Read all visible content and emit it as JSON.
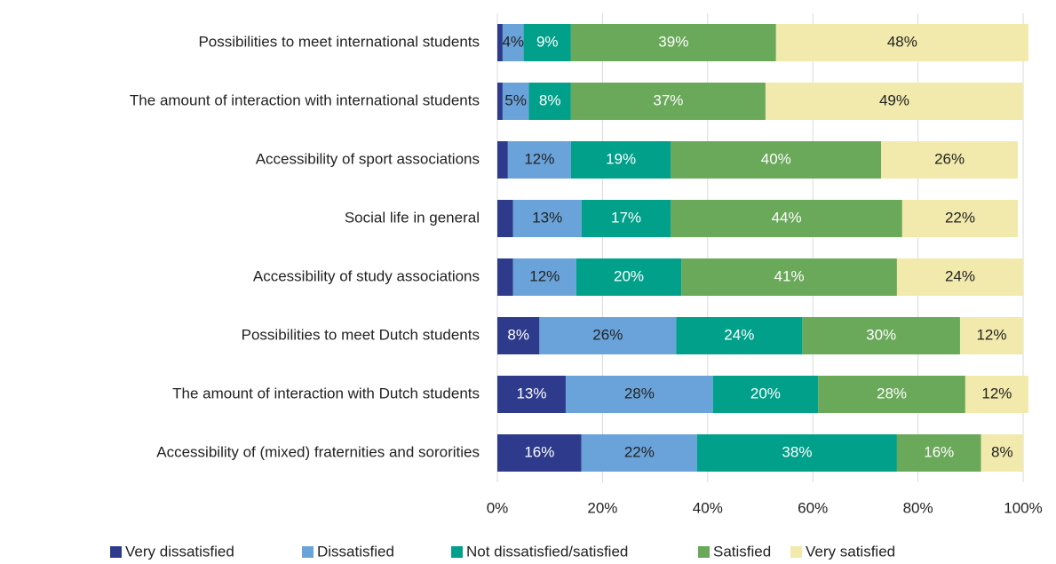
{
  "chart_data": {
    "type": "stacked_barh",
    "categories": [
      "Possibilities to meet international students",
      "The amount of interaction with international students",
      "Accessibility of sport associations",
      "Social life in general",
      "Accessibility of study associations",
      "Possibilities to meet Dutch students",
      "The amount of interaction with Dutch students",
      "Accessibility of (mixed) fraternities and sororities"
    ],
    "series": [
      {
        "name": "Very dissatisfied",
        "color": "#2e3b8c",
        "label_color": "#ffffff",
        "values": [
          1,
          1,
          2,
          3,
          3,
          8,
          13,
          16
        ],
        "value_labels": [
          null,
          null,
          null,
          null,
          null,
          "8%",
          "13%",
          "16%"
        ]
      },
      {
        "name": "Dissatisfied",
        "color": "#6aa3da",
        "label_color": "#222222",
        "values": [
          4,
          5,
          12,
          13,
          12,
          26,
          28,
          22
        ],
        "value_labels": [
          "4%",
          "5%",
          "12%",
          "13%",
          "12%",
          "26%",
          "28%",
          "22%"
        ]
      },
      {
        "name": "Not dissatisfied/satisfied",
        "color": "#00a08a",
        "label_color": "#ffffff",
        "values": [
          9,
          8,
          19,
          17,
          20,
          24,
          20,
          38
        ],
        "value_labels": [
          "9%",
          "8%",
          "19%",
          "17%",
          "20%",
          "24%",
          "20%",
          "38%"
        ]
      },
      {
        "name": "Satisfied",
        "color": "#6aa85a",
        "label_color": "#ffffff",
        "values": [
          39,
          37,
          40,
          44,
          41,
          30,
          28,
          16
        ],
        "value_labels": [
          "39%",
          "37%",
          "40%",
          "44%",
          "41%",
          "30%",
          "28%",
          "16%"
        ]
      },
      {
        "name": "Very satisfied",
        "color": "#f1eaac",
        "label_color": "#222222",
        "values": [
          48,
          49,
          26,
          22,
          24,
          12,
          12,
          8
        ],
        "value_labels": [
          "48%",
          "49%",
          "26%",
          "22%",
          "24%",
          "12%",
          "12%",
          "8%"
        ]
      }
    ],
    "xlim": [
      0,
      100
    ],
    "xticks": [
      {
        "value": 0,
        "label": "0%"
      },
      {
        "value": 20,
        "label": "20%"
      },
      {
        "value": 40,
        "label": "40%"
      },
      {
        "value": 60,
        "label": "60%"
      },
      {
        "value": 80,
        "label": "80%"
      },
      {
        "value": 100,
        "label": "100%"
      }
    ],
    "grid": true,
    "legend": "bottom"
  }
}
